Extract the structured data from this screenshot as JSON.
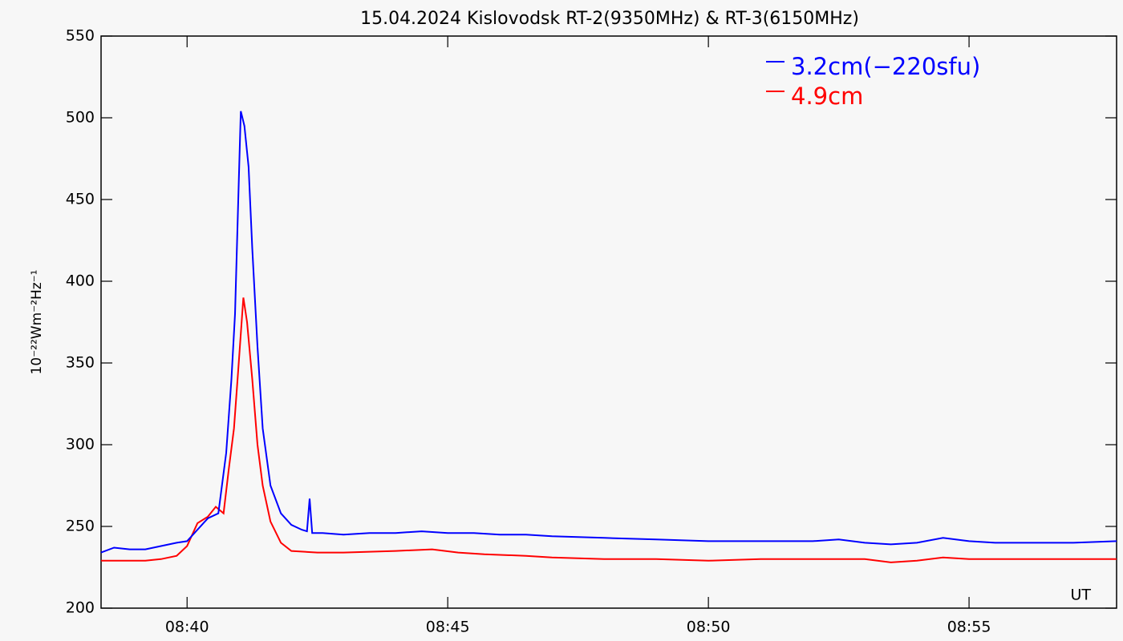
{
  "chart_data": {
    "type": "line",
    "title": "15.04.2024 Kislovodsk RT-2(9350MHz) & RT-3(6150MHz)",
    "y_label": "10⁻²²Wm⁻²Hz⁻¹",
    "x_label": "UT",
    "legend": "top-right",
    "xlim": [
      518.35,
      537.83
    ],
    "xticks": [
      {
        "value": 520,
        "label": "08:40"
      },
      {
        "value": 525,
        "label": "08:45"
      },
      {
        "value": 530,
        "label": "08:50"
      },
      {
        "value": 535,
        "label": "08:55"
      }
    ],
    "ylim": [
      200,
      550
    ],
    "yticks": [
      200,
      250,
      300,
      350,
      400,
      450,
      500,
      550
    ],
    "series": [
      {
        "name": "3.2cm(−220sfu)",
        "color": "#0000ff",
        "x": [
          518.35,
          518.6,
          518.9,
          519.2,
          519.5,
          519.8,
          520.0,
          520.2,
          520.4,
          520.6,
          520.75,
          520.85,
          520.92,
          521.0,
          521.03,
          521.1,
          521.18,
          521.25,
          521.35,
          521.45,
          521.6,
          521.8,
          522.0,
          522.2,
          522.3,
          522.35,
          522.4,
          522.6,
          523.0,
          523.5,
          524.0,
          524.5,
          525.0,
          525.5,
          526.0,
          526.5,
          527.0,
          528.0,
          529.0,
          530.0,
          531.0,
          532.0,
          532.5,
          533.0,
          533.5,
          534.0,
          534.5,
          535.0,
          535.5,
          536.0,
          536.5,
          537.0,
          537.83
        ],
        "values": [
          234,
          237,
          236,
          236,
          238,
          240,
          241,
          248,
          255,
          258,
          295,
          340,
          380,
          470,
          504,
          495,
          470,
          420,
          360,
          310,
          275,
          258,
          251,
          248,
          247,
          267,
          246,
          246,
          245,
          246,
          246,
          247,
          246,
          246,
          245,
          245,
          244,
          243,
          242,
          241,
          241,
          241,
          242,
          240,
          239,
          240,
          243,
          241,
          240,
          240,
          240,
          240,
          241
        ]
      },
      {
        "name": "4.9cm",
        "color": "#ff0000",
        "x": [
          518.35,
          518.8,
          519.2,
          519.5,
          519.8,
          520.0,
          520.1,
          520.2,
          520.4,
          520.55,
          520.7,
          520.8,
          520.9,
          520.98,
          521.08,
          521.15,
          521.25,
          521.35,
          521.45,
          521.6,
          521.8,
          522.0,
          522.5,
          523.0,
          524.0,
          524.7,
          525.2,
          525.7,
          526.5,
          527.0,
          528.0,
          529.0,
          530.0,
          531.0,
          532.0,
          533.0,
          533.5,
          534.0,
          534.5,
          535.0,
          536.0,
          537.0,
          537.83
        ],
        "values": [
          229,
          229,
          229,
          230,
          232,
          238,
          245,
          252,
          256,
          262,
          258,
          285,
          310,
          345,
          390,
          375,
          340,
          300,
          275,
          253,
          240,
          235,
          234,
          234,
          235,
          236,
          234,
          233,
          232,
          231,
          230,
          230,
          229,
          230,
          230,
          230,
          228,
          229,
          231,
          230,
          230,
          230,
          230
        ]
      }
    ]
  }
}
